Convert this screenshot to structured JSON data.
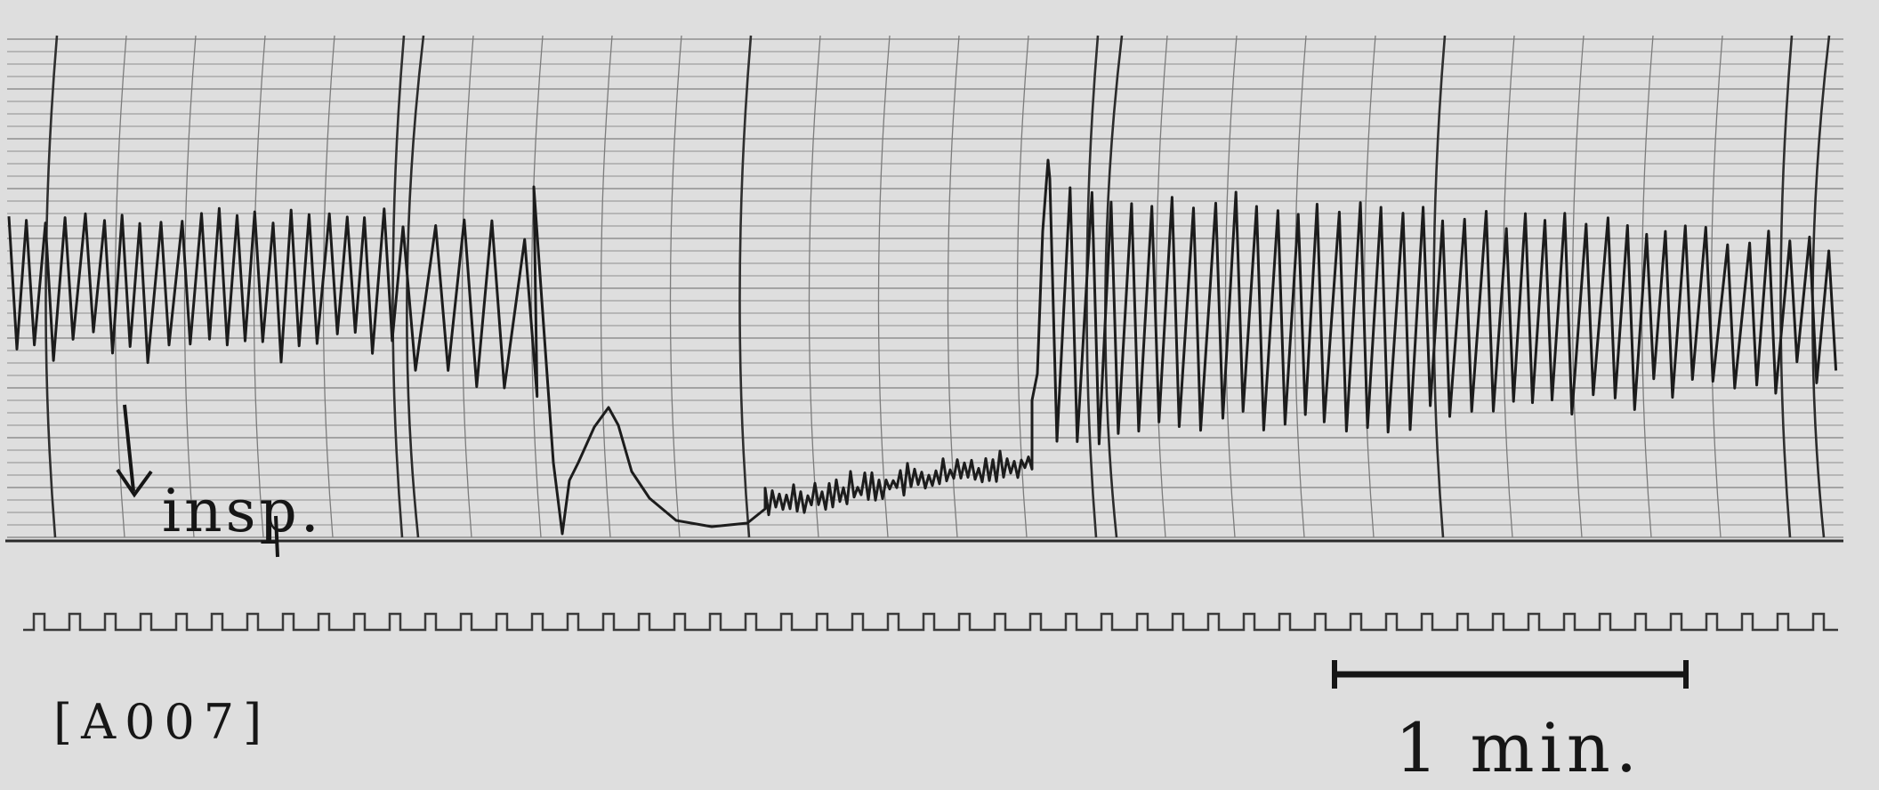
{
  "annotations": {
    "inspiration_label": "insp.",
    "record_id": "[A007]",
    "scale_label": "1 min."
  },
  "colors": {
    "paper": "#dedede",
    "grid": "#8a8a8a",
    "trace": "#1c1c1c"
  },
  "icons": {
    "inspiration_marker": "down-arrow-icon"
  }
}
